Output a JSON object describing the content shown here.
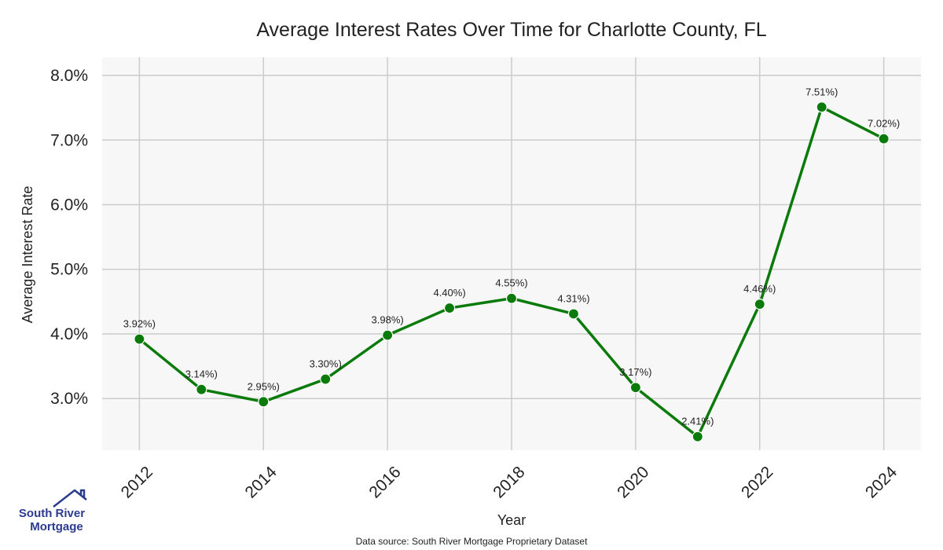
{
  "chart_data": {
    "type": "line",
    "title": "Average Interest Rates Over Time for Charlotte County, FL",
    "xlabel": "Year",
    "ylabel": "Average Interest Rate",
    "x": [
      2012,
      2013,
      2014,
      2015,
      2016,
      2017,
      2018,
      2019,
      2020,
      2021,
      2022,
      2023,
      2024
    ],
    "values": [
      3.92,
      3.14,
      2.95,
      3.3,
      3.98,
      4.4,
      4.55,
      4.31,
      3.17,
      2.41,
      4.46,
      7.51,
      7.02
    ],
    "data_labels": [
      "3.92%)",
      "3.14%)",
      "2.95%)",
      "3.30%)",
      "3.98%)",
      "4.40%)",
      "4.55%)",
      "4.31%)",
      "3.17%)",
      "2.41%)",
      "4.46%)",
      "7.51%)",
      "7.02%)"
    ],
    "x_ticks": [
      "2012",
      "2014",
      "2016",
      "2018",
      "2020",
      "2022",
      "2024"
    ],
    "y_ticks": [
      3.0,
      4.0,
      5.0,
      6.0,
      7.0,
      8.0
    ],
    "y_tick_labels": [
      "3.0%",
      "4.0%",
      "5.0%",
      "6.0%",
      "7.0%",
      "8.0%"
    ],
    "xlim": [
      2011.4,
      2024.6
    ],
    "ylim": [
      2.2,
      8.28
    ],
    "grid": true,
    "line_color": "#0a7a0a",
    "plot_background": "#f7f7f7",
    "grid_color": "#cccccc"
  },
  "logo": {
    "line1": "South River",
    "line2": "Mortgage",
    "color": "#2b3b8f"
  },
  "source_note": "Data source: South River Mortgage Proprietary Dataset"
}
